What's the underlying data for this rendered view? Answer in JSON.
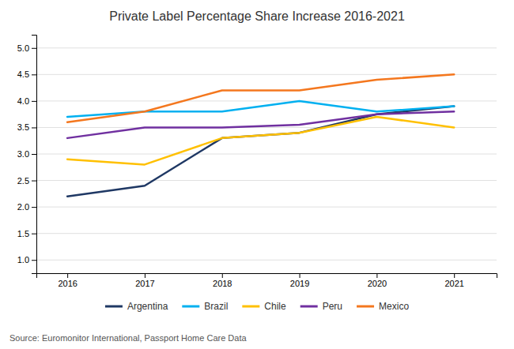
{
  "chart_data": {
    "type": "line",
    "title": "Private Label Percentage Share Increase 2016-2021",
    "x": [
      2016,
      2017,
      2018,
      2019,
      2020,
      2021
    ],
    "series": [
      {
        "name": "Argentina",
        "values": [
          2.2,
          2.4,
          3.3,
          3.4,
          3.75,
          3.9
        ],
        "color": "#1f3864"
      },
      {
        "name": "Brazil",
        "values": [
          3.7,
          3.8,
          3.8,
          4.0,
          3.8,
          3.9
        ],
        "color": "#00b0f0"
      },
      {
        "name": "Chile",
        "values": [
          2.9,
          2.8,
          3.3,
          3.4,
          3.7,
          3.5
        ],
        "color": "#ffc000"
      },
      {
        "name": "Peru",
        "values": [
          3.3,
          3.5,
          3.5,
          3.55,
          3.75,
          3.8
        ],
        "color": "#7030a0"
      },
      {
        "name": "Mexico",
        "values": [
          3.6,
          3.8,
          4.2,
          4.2,
          4.4,
          4.5
        ],
        "color": "#f4771e"
      }
    ],
    "xlim": [
      2015.6,
      2021.55
    ],
    "xticks": [
      2016,
      2017,
      2018,
      2019,
      2020,
      2021
    ],
    "ylim": [
      0.75,
      5.25
    ],
    "yticks": [
      {
        "value": 1.0,
        "label": "1.0"
      },
      {
        "value": 1.5,
        "label": "1.5"
      },
      {
        "value": 2.0,
        "label": "2.0"
      },
      {
        "value": 2.5,
        "label": "2.5"
      },
      {
        "value": 3.0,
        "label": "3.0"
      },
      {
        "value": 3.5,
        "label": "3.5"
      },
      {
        "value": 4.0,
        "label": "4.0"
      },
      {
        "value": 4.5,
        "label": "4.5"
      },
      {
        "value": 5.0,
        "label": "5.0"
      }
    ],
    "grid": true,
    "legend": "bottom",
    "annotations": [
      "Source: Euromonitor International, Passport Home Care Data"
    ]
  }
}
